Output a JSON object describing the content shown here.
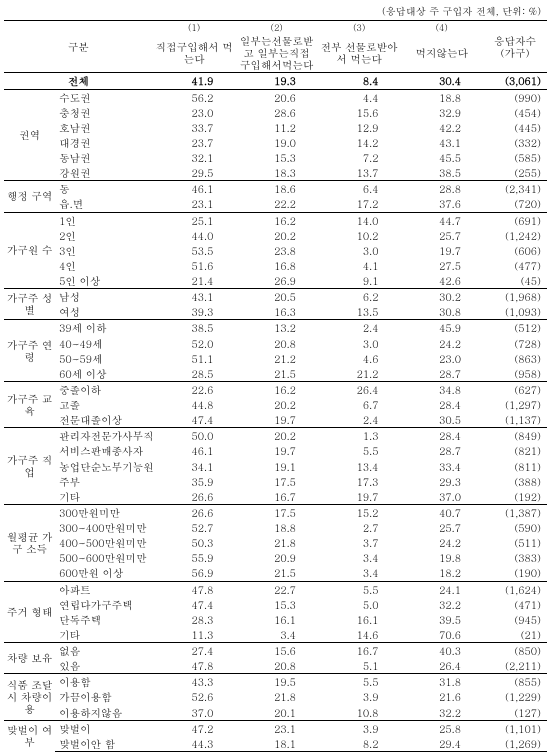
{
  "unit_note": "(응답대상 주 구입자 전체, 단위: %)",
  "header": {
    "gubun": "구분",
    "col_nums": [
      "(1)",
      "(2)",
      "(3)",
      "(4)"
    ],
    "col_labels": [
      "직접구입해서 먹는다",
      "일부는선물로받고 일부는직접 구입해서먹는다",
      "전부 선물로받아서 먹는다",
      "먹지않는다"
    ],
    "resp": [
      "응답자수",
      "(가구)"
    ]
  },
  "total": {
    "label": "전체",
    "v": [
      "41.9",
      "19.3",
      "8.4",
      "30.4"
    ],
    "r": "(3,061)"
  },
  "sections": [
    {
      "group": "권역",
      "rows": [
        {
          "l": "수도권",
          "v": [
            "56.2",
            "20.6",
            "4.4",
            "18.8"
          ],
          "r": "(990)"
        },
        {
          "l": "충청권",
          "v": [
            "23.0",
            "28.6",
            "15.6",
            "32.9"
          ],
          "r": "(454)"
        },
        {
          "l": "호남권",
          "v": [
            "33.7",
            "11.2",
            "12.9",
            "42.2"
          ],
          "r": "(445)"
        },
        {
          "l": "대경권",
          "v": [
            "23.7",
            "19.0",
            "14.2",
            "43.1"
          ],
          "r": "(332)"
        },
        {
          "l": "동남권",
          "v": [
            "32.1",
            "15.3",
            "7.2",
            "45.5"
          ],
          "r": "(585)"
        },
        {
          "l": "강원권",
          "v": [
            "29.5",
            "18.3",
            "13.7",
            "38.5"
          ],
          "r": "(255)"
        }
      ]
    },
    {
      "group": "행정 구역",
      "rows": [
        {
          "l": "동",
          "v": [
            "46.1",
            "18.6",
            "6.4",
            "28.8"
          ],
          "r": "(2,341)"
        },
        {
          "l": "읍.면",
          "v": [
            "23.1",
            "22.2",
            "17.2",
            "37.6"
          ],
          "r": "(720)"
        }
      ]
    },
    {
      "group": "가구원 수",
      "rows": [
        {
          "l": "1인",
          "v": [
            "25.1",
            "16.2",
            "14.0",
            "44.7"
          ],
          "r": "(691)"
        },
        {
          "l": "2인",
          "v": [
            "44.0",
            "20.2",
            "10.2",
            "25.7"
          ],
          "r": "(1,242)"
        },
        {
          "l": "3인",
          "v": [
            "53.5",
            "23.8",
            "3.0",
            "19.7"
          ],
          "r": "(606)"
        },
        {
          "l": "4인",
          "v": [
            "51.6",
            "16.8",
            "4.1",
            "27.5"
          ],
          "r": "(477)"
        },
        {
          "l": "5인 이상",
          "v": [
            "21.4",
            "26.9",
            "9.1",
            "42.6"
          ],
          "r": "(45)"
        }
      ]
    },
    {
      "group": "가구주 성별",
      "rows": [
        {
          "l": "남성",
          "v": [
            "43.1",
            "20.5",
            "6.2",
            "30.2"
          ],
          "r": "(1,968)"
        },
        {
          "l": "여성",
          "v": [
            "39.3",
            "16.3",
            "13.5",
            "30.8"
          ],
          "r": "(1,093)"
        }
      ]
    },
    {
      "group": "가구주 연령",
      "rows": [
        {
          "l": "39세 이하",
          "v": [
            "38.5",
            "13.2",
            "2.4",
            "45.9"
          ],
          "r": "(512)"
        },
        {
          "l": "40~49세",
          "v": [
            "52.0",
            "20.8",
            "3.0",
            "24.2"
          ],
          "r": "(728)"
        },
        {
          "l": "50~59세",
          "v": [
            "51.1",
            "21.2",
            "4.6",
            "23.0"
          ],
          "r": "(863)"
        },
        {
          "l": "60세 이상",
          "v": [
            "28.5",
            "21.5",
            "21.2",
            "28.7"
          ],
          "r": "(958)"
        }
      ]
    },
    {
      "group": "가구주 교육",
      "rows": [
        {
          "l": "중졸이하",
          "v": [
            "22.6",
            "16.2",
            "26.4",
            "34.8"
          ],
          "r": "(627)"
        },
        {
          "l": "고졸",
          "v": [
            "44.8",
            "20.2",
            "6.7",
            "28.4"
          ],
          "r": "(1,297)"
        },
        {
          "l": "전문대졸이상",
          "v": [
            "47.4",
            "19.7",
            "2.4",
            "30.5"
          ],
          "r": "(1,137)"
        }
      ]
    },
    {
      "group": "가구주 직업",
      "rows": [
        {
          "l": "관리자전문가사무직",
          "v": [
            "50.0",
            "20.2",
            "1.3",
            "28.4"
          ],
          "r": "(849)"
        },
        {
          "l": "서비스판매종사자",
          "v": [
            "46.1",
            "19.7",
            "5.5",
            "28.7"
          ],
          "r": "(821)"
        },
        {
          "l": "농업단순노무기능원등",
          "v": [
            "34.1",
            "19.1",
            "13.4",
            "33.4"
          ],
          "r": "(811)"
        },
        {
          "l": "주부",
          "v": [
            "35.9",
            "17.5",
            "17.3",
            "29.3"
          ],
          "r": "(388)"
        },
        {
          "l": "기타",
          "v": [
            "26.6",
            "16.7",
            "19.7",
            "37.0"
          ],
          "r": "(192)"
        }
      ]
    },
    {
      "group": "월평균 가구 소득",
      "rows": [
        {
          "l": "300만원미만",
          "v": [
            "26.6",
            "17.5",
            "15.2",
            "40.7"
          ],
          "r": "(1,387)"
        },
        {
          "l": "300~400만원미만",
          "v": [
            "52.7",
            "18.8",
            "2.7",
            "25.7"
          ],
          "r": "(590)"
        },
        {
          "l": "400~500만원미만",
          "v": [
            "50.3",
            "21.8",
            "3.7",
            "24.2"
          ],
          "r": "(511)"
        },
        {
          "l": "500~600만원미만",
          "v": [
            "55.9",
            "20.9",
            "3.4",
            "19.8"
          ],
          "r": "(383)"
        },
        {
          "l": "600만원 이상",
          "v": [
            "56.9",
            "21.5",
            "3.4",
            "18.2"
          ],
          "r": "(190)"
        }
      ]
    },
    {
      "group": "주거 형태",
      "rows": [
        {
          "l": "아파트",
          "v": [
            "47.8",
            "22.7",
            "5.5",
            "24.1"
          ],
          "r": "(1,624)"
        },
        {
          "l": "연립다가구주택",
          "v": [
            "47.4",
            "15.3",
            "5.0",
            "32.2"
          ],
          "r": "(471)"
        },
        {
          "l": "단독주택",
          "v": [
            "28.3",
            "16.1",
            "16.1",
            "39.5"
          ],
          "r": "(945)"
        },
        {
          "l": "기타",
          "v": [
            "11.3",
            "3.4",
            "14.6",
            "70.6"
          ],
          "r": "(21)"
        }
      ]
    },
    {
      "group": "차량 보유",
      "rows": [
        {
          "l": "없음",
          "v": [
            "27.4",
            "15.6",
            "16.7",
            "40.3"
          ],
          "r": "(850)"
        },
        {
          "l": "있음",
          "v": [
            "47.8",
            "20.8",
            "5.1",
            "26.4"
          ],
          "r": "(2,211)"
        }
      ]
    },
    {
      "group": "식품 조달 시 차량이용",
      "rows": [
        {
          "l": "이용함",
          "v": [
            "43.3",
            "19.5",
            "5.5",
            "31.8"
          ],
          "r": "(855)"
        },
        {
          "l": "가끔이용함",
          "v": [
            "52.6",
            "21.8",
            "3.9",
            "21.6"
          ],
          "r": "(1,229)"
        },
        {
          "l": "이용하지않음",
          "v": [
            "37.0",
            "20.1",
            "10.8",
            "32.2"
          ],
          "r": "(127)"
        }
      ]
    },
    {
      "group": "맞벌이 여부",
      "rows": [
        {
          "l": "맞벌이",
          "v": [
            "47.2",
            "23.1",
            "3.9",
            "25.8"
          ],
          "r": "(1,101)"
        },
        {
          "l": "맞벌이안 함",
          "v": [
            "44.3",
            "18.1",
            "8.2",
            "29.4"
          ],
          "r": "(1,269)"
        }
      ]
    }
  ]
}
